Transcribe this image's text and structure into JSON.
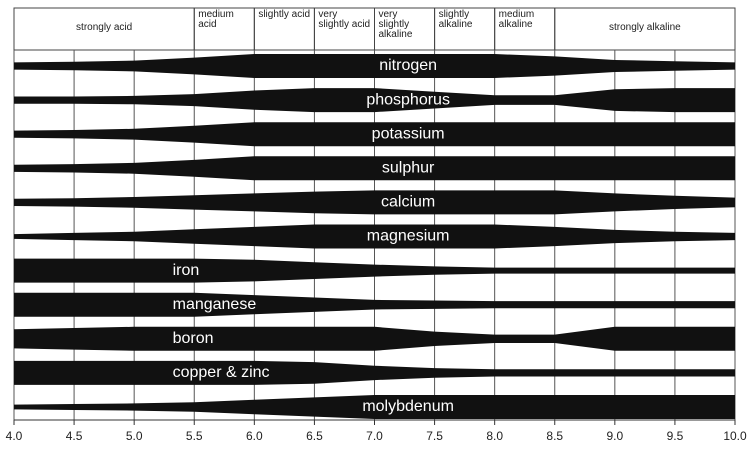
{
  "chart_data": {
    "type": "band",
    "x": [
      4.0,
      4.5,
      5.0,
      5.5,
      6.0,
      6.5,
      7.0,
      7.5,
      8.0,
      8.5,
      9.0,
      9.5,
      10.0
    ],
    "xlim": [
      4.0,
      10.0
    ],
    "xticks": [
      {
        "value": 4.0,
        "label": "4.0"
      },
      4.5,
      {
        "value": 5.0,
        "label": "5.0"
      },
      5.5,
      {
        "value": 6.0,
        "label": "6.0"
      },
      6.5,
      {
        "value": 7.0,
        "label": "7.0"
      },
      7.5,
      {
        "value": 8.0,
        "label": "8.0"
      },
      8.5,
      {
        "value": 9.0,
        "label": "9.0"
      },
      9.5,
      {
        "value": 10.0,
        "label": "10.0"
      }
    ],
    "grid": true,
    "color": "#111111",
    "zones": [
      {
        "label": "strongly acid",
        "from": 4.0,
        "to": 5.5
      },
      {
        "label": "medium acid",
        "from": 5.5,
        "to": 6.0
      },
      {
        "label": "slightly acid",
        "from": 6.0,
        "to": 6.5
      },
      {
        "label": "very slightly acid",
        "from": 6.5,
        "to": 7.0
      },
      {
        "label": "very slightly alkaline",
        "from": 7.0,
        "to": 7.5
      },
      {
        "label": "slightly alkaline",
        "from": 7.5,
        "to": 8.0
      },
      {
        "label": "medium alkaline",
        "from": 8.0,
        "to": 8.5
      },
      {
        "label": "strongly alkaline",
        "from": 8.5,
        "to": 10.0
      }
    ],
    "series": [
      {
        "name": "nitrogen",
        "values": [
          0.3,
          0.35,
          0.45,
          0.7,
          1,
          1,
          1,
          1,
          1,
          0.8,
          0.5,
          0.4,
          0.3
        ]
      },
      {
        "name": "phosphorus",
        "values": [
          0.3,
          0.3,
          0.35,
          0.5,
          0.8,
          1,
          1,
          0.7,
          0.4,
          0.4,
          0.9,
          1,
          1
        ]
      },
      {
        "name": "potassium",
        "values": [
          0.3,
          0.35,
          0.45,
          0.7,
          1,
          1,
          1,
          1,
          1,
          1,
          1,
          1,
          1
        ]
      },
      {
        "name": "sulphur",
        "values": [
          0.3,
          0.35,
          0.45,
          0.7,
          1,
          1,
          1,
          1,
          1,
          1,
          1,
          1,
          1
        ]
      },
      {
        "name": "calcium",
        "values": [
          0.3,
          0.35,
          0.45,
          0.6,
          0.75,
          0.9,
          1,
          1,
          1,
          1,
          0.75,
          0.55,
          0.4
        ]
      },
      {
        "name": "magnesium",
        "values": [
          0.2,
          0.3,
          0.4,
          0.6,
          0.8,
          1,
          1,
          1,
          1,
          0.8,
          0.55,
          0.4,
          0.3
        ]
      },
      {
        "name": "iron",
        "values": [
          1,
          1,
          1,
          1,
          0.9,
          0.7,
          0.5,
          0.35,
          0.25,
          0.25,
          0.25,
          0.25,
          0.25
        ]
      },
      {
        "name": "manganese",
        "values": [
          1,
          1,
          1,
          1,
          0.8,
          0.6,
          0.4,
          0.35,
          0.3,
          0.3,
          0.3,
          0.3,
          0.3
        ]
      },
      {
        "name": "boron",
        "values": [
          0.8,
          0.9,
          1,
          1,
          1,
          1,
          1,
          0.6,
          0.35,
          0.35,
          1,
          1,
          1
        ]
      },
      {
        "name": "copper & zinc",
        "values": [
          1,
          1,
          1,
          1,
          1,
          0.9,
          0.6,
          0.4,
          0.3,
          0.3,
          0.3,
          0.3,
          0.3
        ]
      },
      {
        "name": "molybdenum",
        "values": [
          0.2,
          0.25,
          0.3,
          0.4,
          0.6,
          0.8,
          1,
          1,
          1,
          1,
          1,
          1,
          1
        ]
      }
    ]
  }
}
